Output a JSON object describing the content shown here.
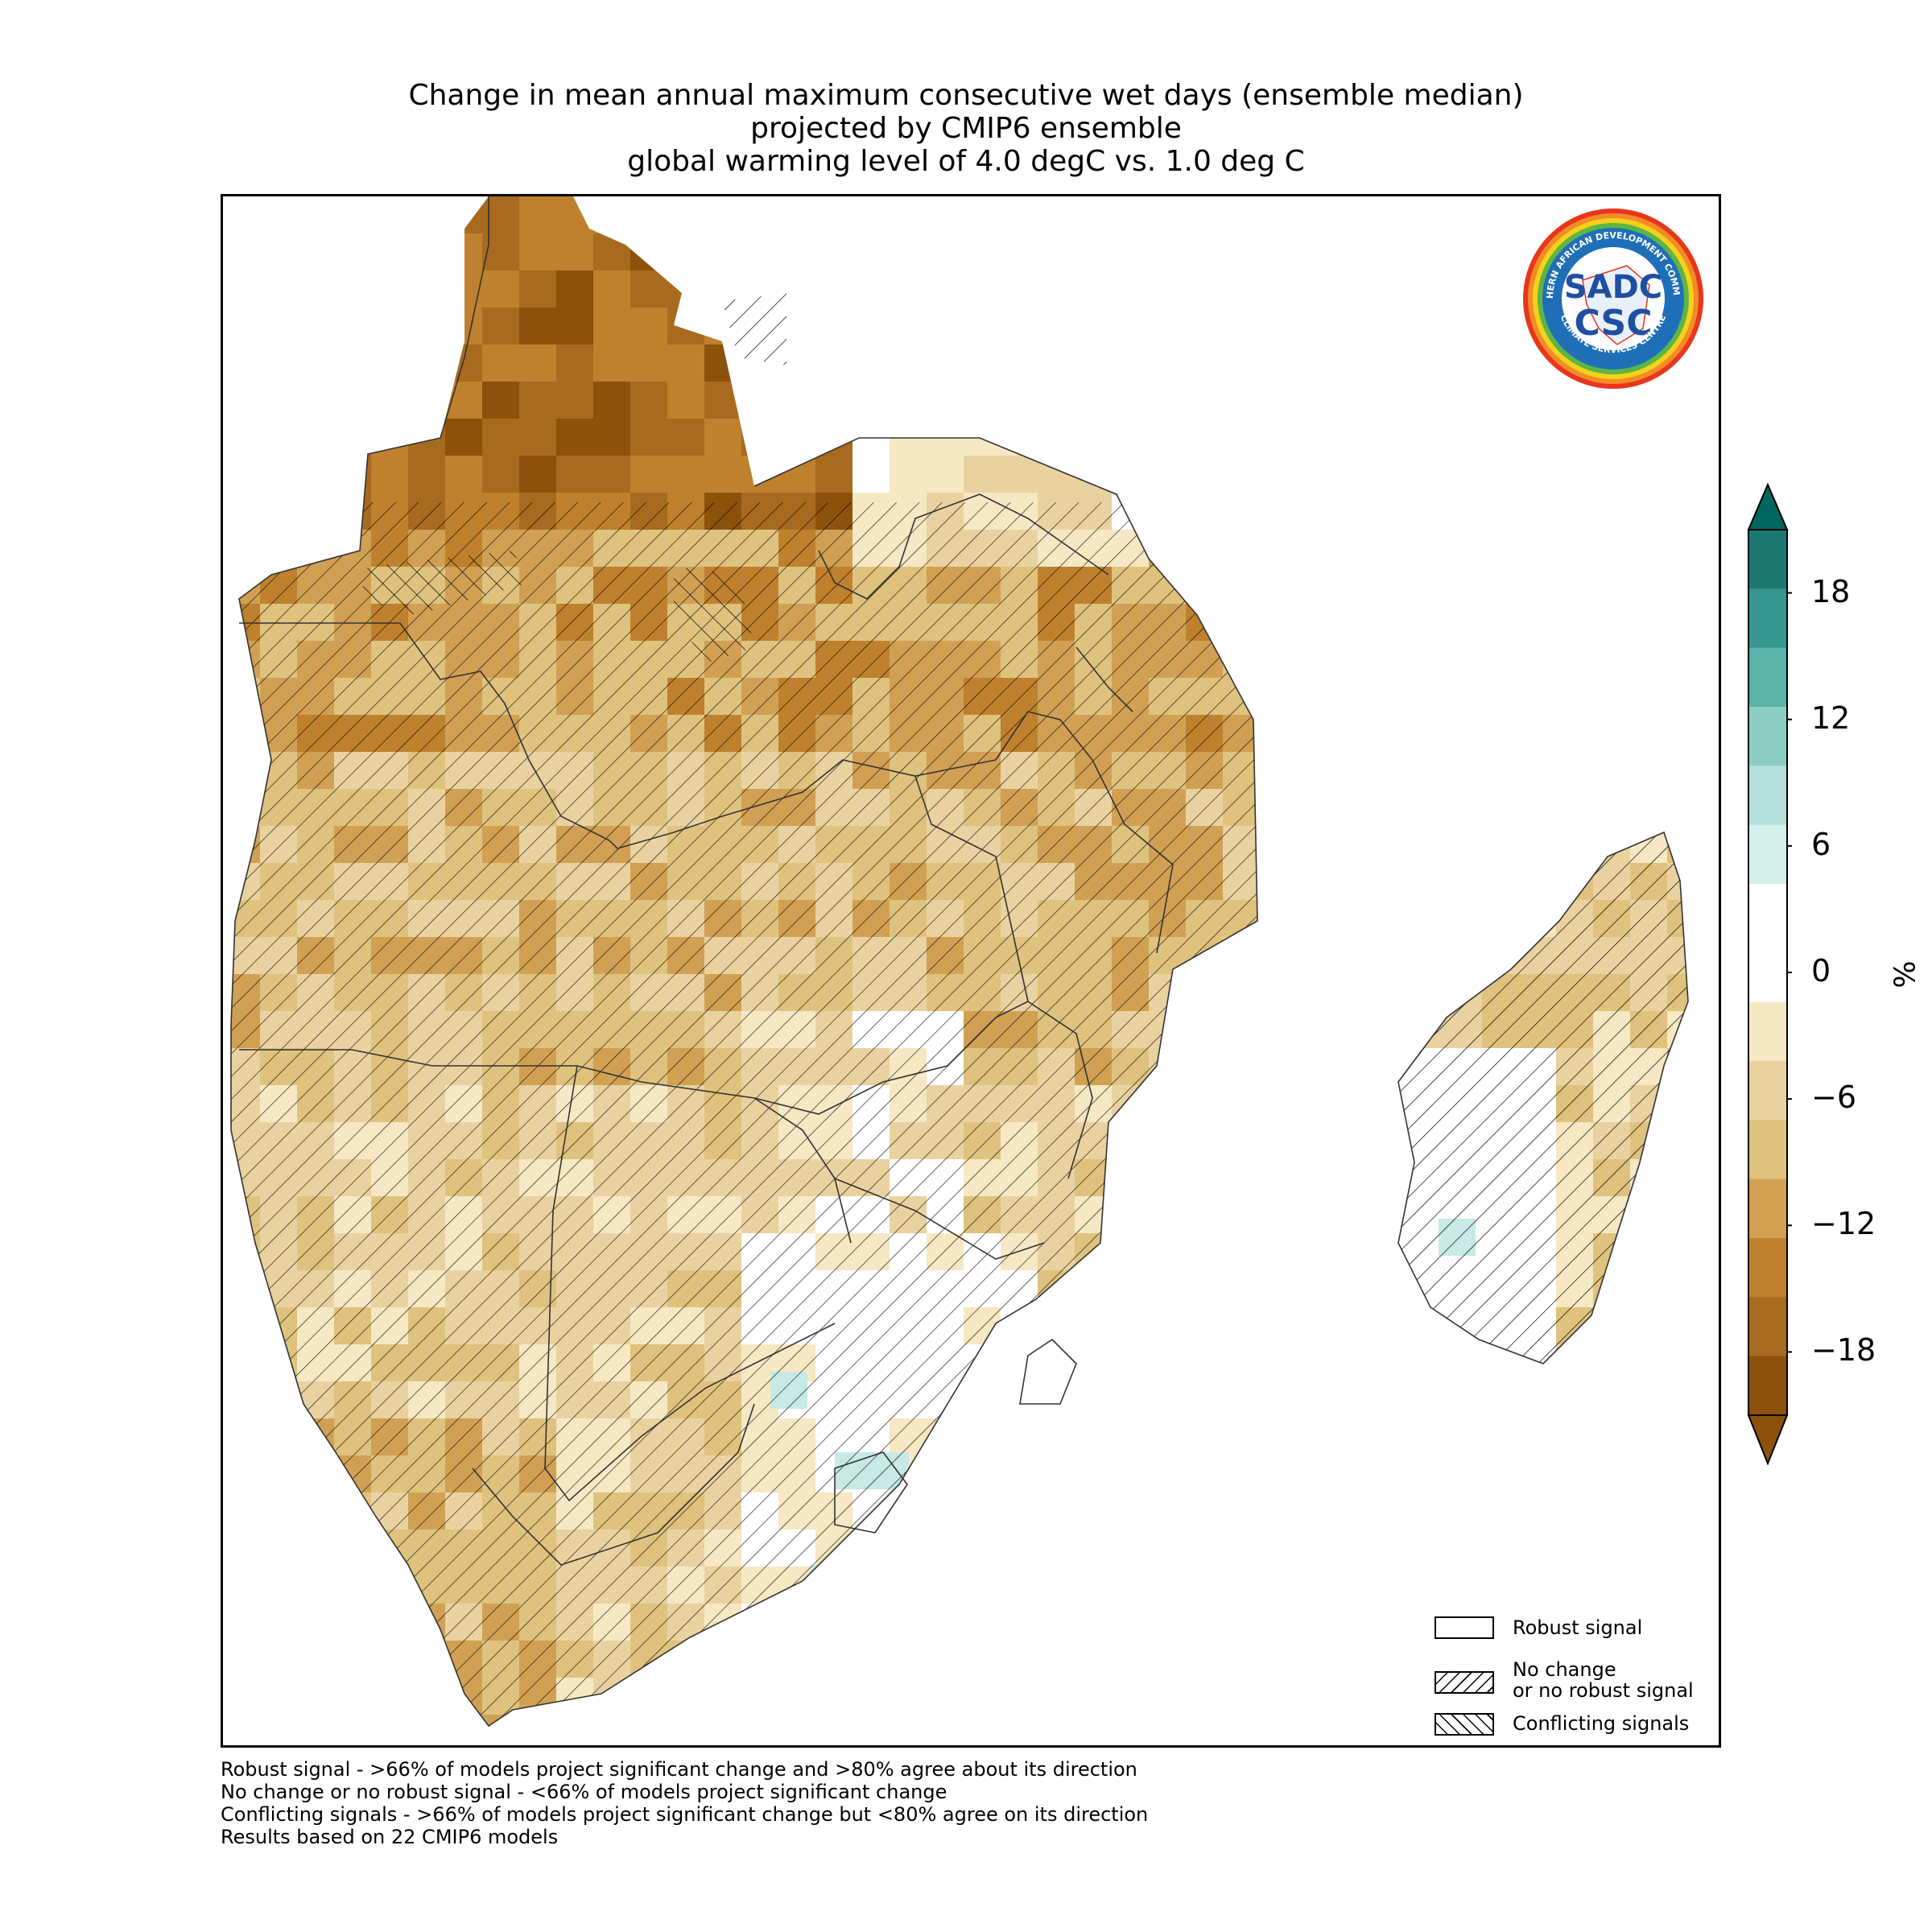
{
  "title": {
    "line1": "Change in mean annual maximum consecutive wet days (ensemble median)",
    "line2": "projected by CMIP6 ensemble",
    "line3": "global warming level of 4.0 degC vs. 1.0 deg C"
  },
  "legend": {
    "robust": "Robust signal",
    "no_change_line1": "No change",
    "no_change_line2": "or no robust signal",
    "conflicting": "Conflicting signals"
  },
  "footnotes": [
    "Robust signal - >66% of models project significant change and >80% agree about its direction",
    "No change or no robust signal - <66% of models project significant change",
    "Conflicting signals - >66% of models project significant change but <80% agree on its direction",
    "Results based on 22 CMIP6 models"
  ],
  "colorbar": {
    "unit": "%",
    "ticks": [
      "18",
      "12",
      "6",
      "0",
      "−6",
      "−12",
      "−18"
    ],
    "tick_values": [
      18,
      12,
      6,
      0,
      -6,
      -12,
      -18
    ],
    "range": [
      -21,
      21
    ],
    "colors": [
      "#8c510a",
      "#a86a1e",
      "#bf812d",
      "#d1a053",
      "#dfc27d",
      "#ead2a0",
      "#f6e8c3",
      "#ffffff",
      "#ffffff",
      "#d5efeb",
      "#b3e0da",
      "#8ccfc2",
      "#5ab4a8",
      "#35978f",
      "#1d7a72"
    ],
    "extend_low": "#8c510a",
    "extend_high": "#01665e"
  },
  "logo": {
    "top_text": "SOUTHERN AFRICAN DEVELOPMENT COMMUNITY",
    "bottom_text": "CLIMATE SERVICES CENTRE",
    "mark_top": "SADC",
    "mark_bottom": "CSC"
  },
  "colors": {
    "dark_brown": "#8c510a",
    "mid_brown": "#bf812d",
    "tan": "#dfc27d",
    "light_tan": "#f6e8c3",
    "teal_light": "#c7eae5",
    "teal_dark": "#01665e"
  }
}
